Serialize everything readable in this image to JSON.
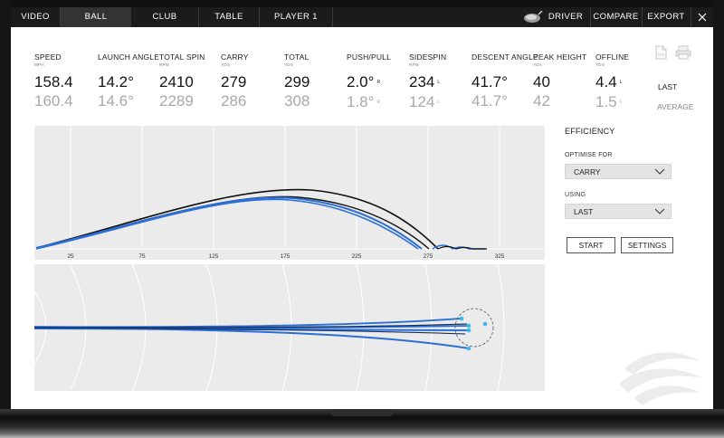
{
  "nav": {
    "tabs": [
      "VIDEO",
      "BALL",
      "CLUB",
      "TABLE",
      "PLAYER 1"
    ],
    "active_tab": "BALL",
    "club": "DRIVER",
    "compare": "COMPARE",
    "export": "EXPORT",
    "close_icon": "close-icon",
    "club_icon": "driver-head-icon"
  },
  "stats": [
    {
      "label": "SPEED",
      "unit": "MPH",
      "last": "158.4",
      "avg": "160.4"
    },
    {
      "label": "LAUNCH ANGLE",
      "unit": "",
      "last": "14.2°",
      "avg": "14.6°"
    },
    {
      "label": "TOTAL SPIN",
      "unit": "RPM",
      "last": "2410",
      "avg": "2289"
    },
    {
      "label": "CARRY",
      "unit": "YDS",
      "last": "279",
      "avg": "286"
    },
    {
      "label": "TOTAL",
      "unit": "YDS",
      "last": "299",
      "avg": "308"
    },
    {
      "label": "PUSH/PULL",
      "unit": "",
      "last": "2.0°",
      "last_dir": "R",
      "avg": "1.8°",
      "avg_dir": "R"
    },
    {
      "label": "SIDESPIN",
      "unit": "RPM",
      "last": "234",
      "last_dir": "L",
      "avg": "124",
      "avg_dir": "L"
    },
    {
      "label": "DESCENT ANGLE",
      "unit": "",
      "last": "41.7°",
      "avg": "41.7°"
    },
    {
      "label": "PEAK HEIGHT",
      "unit": "YDS",
      "last": "40",
      "avg": "42"
    },
    {
      "label": "OFFLINE",
      "unit": "YDS",
      "last": "4.4",
      "last_dir": "L",
      "avg": "1.5",
      "avg_dir": "L"
    }
  ],
  "row_labels": {
    "last": "LAST",
    "average": "AVERAGE"
  },
  "axis_ticks": [
    "25",
    "75",
    "125",
    "175",
    "225",
    "275",
    "325"
  ],
  "panel": {
    "title": "EFFICIENCY",
    "optimise_label": "OPTIMISE FOR",
    "optimise_value": "CARRY",
    "using_label": "USING",
    "using_value": "LAST",
    "start_button": "START",
    "settings_button": "SETTINGS"
  },
  "colors": {
    "shot_line": "#2a6fd6",
    "avg_line": "#111111",
    "landing_marker": "#3db8e8",
    "nav_bg": "#1b1b1b"
  },
  "icons": [
    "document-icon",
    "print-icon",
    "chevron-down-icon",
    "brand-logo-watermark"
  ]
}
